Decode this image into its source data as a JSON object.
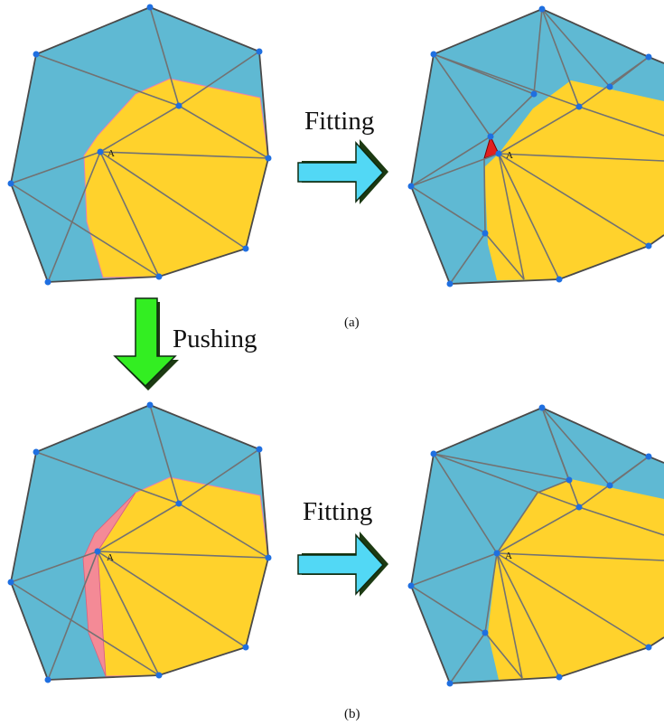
{
  "point_label": "A",
  "arrows": {
    "fitting_top": "Fitting",
    "pushing": "Pushing",
    "fitting_bottom": "Fitting"
  },
  "captions": {
    "a": "(a)",
    "b": "(b)"
  },
  "colors": {
    "blue_region": "#5fb9d3",
    "yellow_region": "#ffd22c",
    "pink_region": "#f48a96",
    "red_region": "#e0201f",
    "cyan_arrow": "#52d8f5",
    "green_arrow": "#33ee22",
    "vertex": "#1f6fe0"
  }
}
